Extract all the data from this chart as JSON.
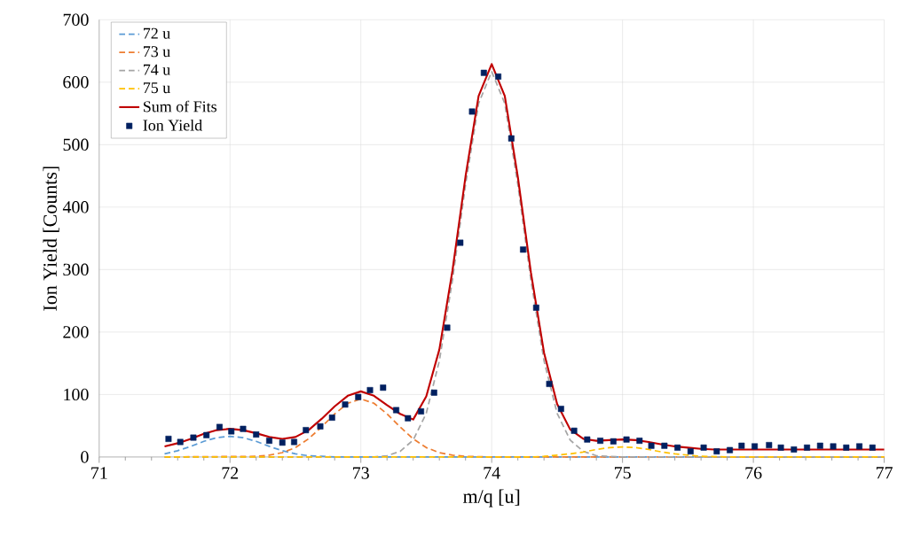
{
  "chart_data": {
    "type": "line",
    "xlabel": "m/q  [u]",
    "ylabel": "Ion Yield [Counts]",
    "xlim": [
      71,
      77
    ],
    "xticks": [
      71,
      72,
      73,
      74,
      75,
      76,
      77
    ],
    "ylim": [
      0,
      700
    ],
    "yticks": [
      0,
      100,
      200,
      300,
      400,
      500,
      600,
      700
    ],
    "grid": true,
    "legend": "top left",
    "series": [
      {
        "name": "72 u",
        "color": "#5b9bd5",
        "line_style": "dashed",
        "marker": "none",
        "x": [
          71.5,
          71.6,
          71.7,
          71.8,
          71.9,
          72.0,
          72.1,
          72.2,
          72.3,
          72.4,
          72.5,
          72.6,
          72.7,
          72.8,
          73.0,
          77.0
        ],
        "values": [
          5,
          10,
          17,
          25,
          31,
          33,
          31,
          25,
          17,
          10,
          5,
          2,
          1,
          0,
          0,
          0
        ]
      },
      {
        "name": "73 u",
        "color": "#ed7d31",
        "line_style": "dashed",
        "marker": "none",
        "x": [
          71.5,
          72.2,
          72.3,
          72.4,
          72.5,
          72.6,
          72.7,
          72.8,
          72.9,
          73.0,
          73.1,
          73.2,
          73.3,
          73.4,
          73.5,
          73.6,
          73.7,
          73.8,
          74.0,
          77.0
        ],
        "values": [
          0,
          1,
          3,
          7,
          15,
          29,
          48,
          69,
          86,
          93,
          86,
          69,
          48,
          29,
          15,
          7,
          3,
          1,
          0,
          0
        ]
      },
      {
        "name": "74 u",
        "color": "#a5a5a5",
        "line_style": "dashed",
        "marker": "none",
        "x": [
          71.5,
          73.1,
          73.2,
          73.3,
          73.4,
          73.5,
          73.6,
          73.7,
          73.8,
          73.9,
          74.0,
          74.1,
          74.2,
          74.3,
          74.4,
          74.5,
          74.6,
          74.7,
          74.8,
          75.0,
          77.0
        ],
        "values": [
          0,
          0,
          2,
          9,
          27,
          70,
          154,
          283,
          436,
          566,
          617,
          566,
          436,
          283,
          154,
          70,
          27,
          9,
          2,
          0,
          0
        ]
      },
      {
        "name": "75 u",
        "color": "#ffc000",
        "line_style": "dashed",
        "marker": "none",
        "x": [
          71.5,
          74.3,
          74.4,
          74.5,
          74.6,
          74.7,
          74.8,
          74.9,
          75.0,
          75.1,
          75.2,
          75.3,
          75.4,
          75.5,
          75.6,
          75.8,
          77.0
        ],
        "values": [
          0,
          0,
          1,
          3,
          5,
          8,
          12,
          15,
          16,
          15,
          12,
          8,
          5,
          3,
          1,
          0,
          0
        ]
      },
      {
        "name": "Sum of Fits",
        "color": "#c00000",
        "line_style": "solid",
        "marker": "none",
        "x": [
          71.5,
          71.6,
          71.7,
          71.8,
          71.9,
          72.0,
          72.1,
          72.2,
          72.3,
          72.4,
          72.5,
          72.6,
          72.7,
          72.8,
          72.9,
          73.0,
          73.1,
          73.2,
          73.3,
          73.4,
          73.5,
          73.6,
          73.7,
          73.8,
          73.9,
          74.0,
          74.1,
          74.2,
          74.3,
          74.4,
          74.5,
          74.6,
          74.7,
          74.8,
          74.9,
          75.0,
          75.1,
          75.2,
          75.3,
          75.4,
          75.5,
          75.6,
          75.7,
          77.0
        ],
        "values": [
          17,
          22,
          29,
          37,
          43,
          45,
          43,
          38,
          32,
          29,
          32,
          43,
          61,
          81,
          98,
          105,
          98,
          83,
          69,
          60,
          97,
          172,
          298,
          449,
          578,
          629,
          578,
          448,
          295,
          167,
          85,
          44,
          29,
          26,
          27,
          28,
          27,
          24,
          20,
          17,
          15,
          13,
          12,
          12
        ]
      },
      {
        "name": "Ion Yield",
        "type": "scatter",
        "color": "#002060",
        "marker": "square",
        "x": [
          71.53,
          71.62,
          71.72,
          71.82,
          71.92,
          72.01,
          72.1,
          72.2,
          72.3,
          72.4,
          72.49,
          72.58,
          72.69,
          72.78,
          72.88,
          72.98,
          73.07,
          73.17,
          73.27,
          73.36,
          73.46,
          73.56,
          73.66,
          73.76,
          73.85,
          73.94,
          74.05,
          74.15,
          74.24,
          74.34,
          74.44,
          74.53,
          74.63,
          74.73,
          74.83,
          74.93,
          75.03,
          75.13,
          75.22,
          75.32,
          75.42,
          75.52,
          75.62,
          75.72,
          75.82,
          75.91,
          76.01,
          76.12,
          76.21,
          76.31,
          76.41,
          76.51,
          76.61,
          76.71,
          76.81,
          76.91
        ],
        "values": [
          29,
          24,
          31,
          35,
          48,
          41,
          45,
          36,
          26,
          23,
          24,
          43,
          49,
          63,
          84,
          96,
          107,
          111,
          75,
          62,
          73,
          103,
          207,
          343,
          553,
          615,
          609,
          510,
          332,
          239,
          117,
          77,
          42,
          28,
          26,
          25,
          28,
          26,
          18,
          18,
          15,
          9,
          15,
          9,
          11,
          18,
          17,
          19,
          15,
          12,
          15,
          18,
          17,
          15,
          17,
          15
        ]
      }
    ]
  }
}
